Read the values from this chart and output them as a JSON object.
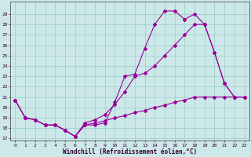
{
  "xlabel": "Windchill (Refroidissement éolien,°C)",
  "background_color": "#cce8e8",
  "grid_color": "#99cccc",
  "line_color": "#990099",
  "x": [
    0,
    1,
    2,
    3,
    4,
    5,
    6,
    7,
    8,
    9,
    10,
    11,
    12,
    13,
    14,
    15,
    16,
    17,
    18,
    19,
    20,
    21,
    22,
    23
  ],
  "ylim_min": 17,
  "ylim_max": 30,
  "yticks": [
    17,
    18,
    19,
    20,
    21,
    22,
    23,
    24,
    25,
    26,
    27,
    28,
    29
  ],
  "line1": [
    20.7,
    19.0,
    18.8,
    18.3,
    18.3,
    17.8,
    17.2,
    18.3,
    18.3,
    18.5,
    20.5,
    23.0,
    23.2,
    25.7,
    28.0,
    29.3,
    29.3,
    28.5,
    29.0,
    28.0,
    25.3,
    22.3,
    21.0,
    21.0
  ],
  "line2": [
    20.7,
    19.0,
    18.8,
    18.3,
    18.3,
    17.8,
    17.2,
    18.5,
    18.8,
    19.3,
    20.3,
    21.5,
    23.0,
    23.3,
    24.0,
    25.0,
    26.0,
    27.0,
    28.0,
    28.0,
    25.3,
    22.3,
    21.0,
    21.0
  ],
  "line3": [
    20.7,
    19.0,
    18.8,
    18.3,
    18.3,
    17.8,
    17.2,
    18.3,
    18.5,
    18.7,
    19.0,
    19.2,
    19.5,
    19.7,
    20.0,
    20.2,
    20.5,
    20.7,
    21.0,
    21.0,
    21.0,
    21.0,
    21.0,
    21.0
  ]
}
